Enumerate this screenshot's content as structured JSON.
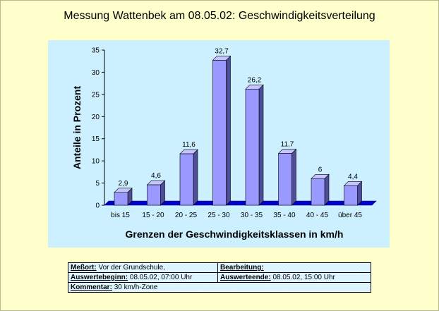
{
  "title": "Messung Wattenbek am 08.05.02: Geschwindigkeitsverteilung",
  "colors": {
    "background": "#ffffcc",
    "plot_panel": "#ccf0ff",
    "bar_front": "#9999ff",
    "bar_side": "#4d4d99",
    "bar_top": "#c4c4ff",
    "floor": "#0000cc"
  },
  "chart_data": {
    "type": "bar",
    "title": "Messung Wattenbek am 08.05.02: Geschwindigkeitsverteilung",
    "xlabel": "Grenzen der Geschwindigkeitsklassen in km/h",
    "ylabel": "Anteile in Prozent",
    "categories": [
      "bis 15",
      "15 - 20",
      "20 - 25",
      "25 - 30",
      "30 - 35",
      "35 - 40",
      "40 - 45",
      "über 45"
    ],
    "values": [
      2.9,
      4.6,
      11.6,
      32.7,
      26.2,
      11.7,
      6,
      4.4
    ],
    "data_labels": [
      "2,9",
      "4,6",
      "11,6",
      "32,7",
      "26,2",
      "11,7",
      "6",
      "4,4"
    ],
    "ylim": [
      0,
      35
    ],
    "yticks": [
      0,
      5,
      10,
      15,
      20,
      25,
      30,
      35
    ],
    "grid": false,
    "legend": "none",
    "style": "3d-column"
  },
  "info": {
    "messort_label": "Meßort:",
    "messort_value": "Vor der Grundschule,",
    "bearbeitung_label": "Bearbeitung:",
    "bearbeitung_value": "",
    "auswertebeginn_label": "Auswertebeginn:",
    "auswertebeginn_value": "08.05.02, 07:00 Uhr",
    "auswerteende_label": "Auswerteende:",
    "auswerteende_value": "08.05.02, 15:00 Uhr",
    "kommentar_label": "Kommentar:",
    "kommentar_value": "30 km/h-Zone"
  }
}
